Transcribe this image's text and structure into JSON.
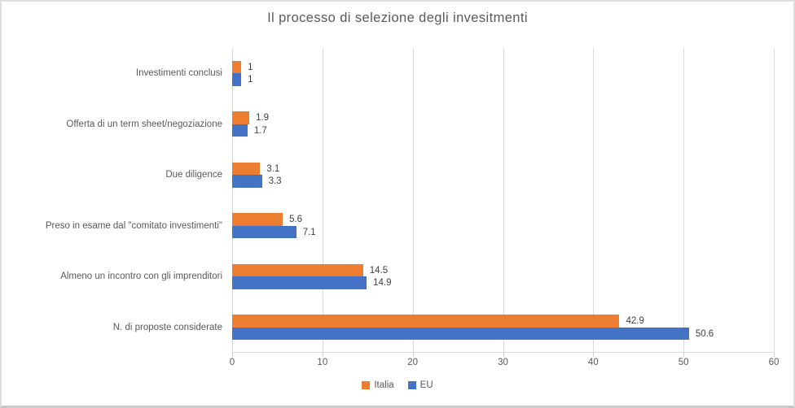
{
  "title": "Il processo di selezione degli invesitmenti",
  "colors": {
    "italia": "#ED7D31",
    "eu": "#4472C4",
    "grid": "#D9D9D9",
    "text": "#595959",
    "value_text": "#404040"
  },
  "legend": [
    {
      "label": "Italia",
      "color": "#ED7D31"
    },
    {
      "label": "EU",
      "color": "#4472C4"
    }
  ],
  "chart_data": {
    "type": "bar",
    "orientation": "horizontal",
    "title": "Il processo di selezione degli invesitmenti",
    "categories": [
      "Investimenti conclusi",
      "Offerta di un term sheet/negoziazione",
      "Due diligence",
      "Preso in esame dal \"comitato investimenti\"",
      "Almeno un incontro con gli imprenditori",
      "N. di proposte considerate"
    ],
    "series": [
      {
        "name": "Italia",
        "color": "#ED7D31",
        "values": [
          1,
          1.9,
          3.1,
          5.6,
          14.5,
          42.9
        ]
      },
      {
        "name": "EU",
        "color": "#4472C4",
        "values": [
          1,
          1.7,
          3.3,
          7.1,
          14.9,
          50.6
        ]
      }
    ],
    "data_labels": {
      "Italia": [
        "1",
        "1.9",
        "3.1",
        "5.6",
        "14.5",
        "42.9"
      ],
      "EU": [
        "1",
        "1.7",
        "3.3",
        "7.1",
        "14.9",
        "50.6"
      ]
    },
    "xlabel": "",
    "ylabel": "",
    "xlim": [
      0,
      60
    ],
    "xticks": [
      0,
      10,
      20,
      30,
      40,
      50,
      60
    ],
    "grid": true,
    "value_labels": true,
    "legend_position": "bottom"
  }
}
